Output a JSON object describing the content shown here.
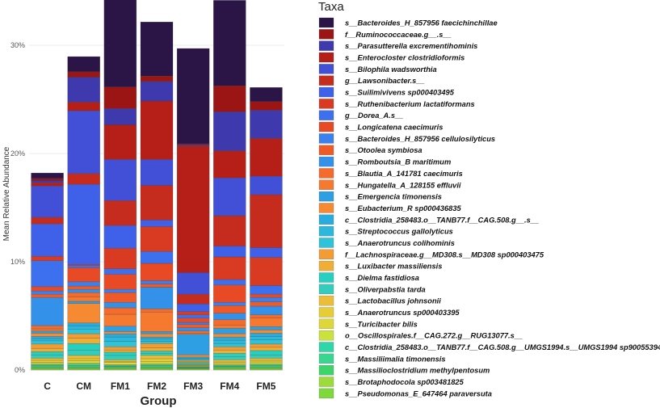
{
  "chart_data": {
    "type": "bar",
    "stacked": true,
    "xlabel": "Group",
    "ylabel": "Mean Relative Abundance",
    "y_tick_labels": [
      "0%",
      "10%",
      "20%",
      "30%"
    ],
    "ylim": [
      0,
      33
    ],
    "y_ticks": [
      0,
      10,
      20,
      30
    ],
    "grid": true,
    "legend_title": "Taxa",
    "legend_position": "right",
    "categories": [
      "C",
      "CM",
      "FM1",
      "FM2",
      "FM3",
      "FM4",
      "FM5"
    ],
    "series": [
      {
        "name": "s__Pseudomonas_E_647464 paraversuta",
        "color": "#7ed93a",
        "values": [
          0.1,
          0.1,
          0.1,
          0.1,
          0.1,
          0.1,
          0.1
        ]
      },
      {
        "name": "s__Brotaphodocola sp003481825",
        "color": "#9bdc3c",
        "values": [
          0.1,
          0.1,
          0.1,
          0.1,
          0.05,
          0.1,
          0.1
        ]
      },
      {
        "name": "s__Massilioclostridium methylpentosum",
        "color": "#3cd46b",
        "values": [
          0.1,
          0.1,
          0.1,
          0.1,
          0.05,
          0.1,
          0.1
        ]
      },
      {
        "name": "s__Massiliimalia timonensis",
        "color": "#3ad68f",
        "values": [
          0.1,
          0.1,
          0.05,
          0.1,
          0.05,
          0.05,
          0.1
        ]
      },
      {
        "name": "c__Clostridia_258483.o__TANB77.f__CAG.508.g__UMGS1994.s__UMGS1994 sp900553945",
        "color": "#2ed6a8",
        "values": [
          0.1,
          0.15,
          0.1,
          0.1,
          0.05,
          0.1,
          0.1
        ]
      },
      {
        "name": "o__Oscillospirales.f__CAG.272.g__RUG13077.s__",
        "color": "#c9e23c",
        "values": [
          0.1,
          0.1,
          0.05,
          0.1,
          0.05,
          0.05,
          0.1
        ]
      },
      {
        "name": "s__Turicibacter bilis",
        "color": "#ddd838",
        "values": [
          0.1,
          0.2,
          0.2,
          0.2,
          0.05,
          0.15,
          0.15
        ]
      },
      {
        "name": "s__Anaerotruncus sp000403395",
        "color": "#e6cd36",
        "values": [
          0.2,
          0.2,
          0.1,
          0.25,
          0.05,
          0.1,
          0.15
        ]
      },
      {
        "name": "s__Lactobacillus johnsonii",
        "color": "#ecbd38",
        "values": [
          0.2,
          0.3,
          0.15,
          0.3,
          0.05,
          0.2,
          0.2
        ]
      },
      {
        "name": "s__Oliverpabstia tarda",
        "color": "#34cdbb",
        "values": [
          0.3,
          0.5,
          0.4,
          0.2,
          0.1,
          0.3,
          0.3
        ]
      },
      {
        "name": "s__Dielma fastidiosa",
        "color": "#27cfc0",
        "values": [
          0.3,
          0.6,
          0.3,
          0.2,
          0.1,
          0.3,
          0.4
        ]
      },
      {
        "name": "s__Luxibacter massiliensis",
        "color": "#f0ae35",
        "values": [
          0.3,
          0.5,
          0.2,
          0.3,
          0.1,
          0.3,
          0.3
        ]
      },
      {
        "name": "f__Lachnospiraceae.g__MD308.s__MD308 sp000403475",
        "color": "#f39c33",
        "values": [
          0.4,
          0.4,
          0.3,
          0.4,
          0.1,
          0.3,
          0.3
        ]
      },
      {
        "name": "s__Anaerotruncus colihominis",
        "color": "#2ec3d8",
        "values": [
          0.3,
          0.4,
          0.5,
          0.2,
          0.1,
          0.3,
          0.4
        ]
      },
      {
        "name": "s__Streptococcus gallolyticus",
        "color": "#2bb8dc",
        "values": [
          0.2,
          0.3,
          0.4,
          0.2,
          0.1,
          0.3,
          0.3
        ]
      },
      {
        "name": "c__Clostridia_258483.o__TANB77.f__CAG.508.g__.s__",
        "color": "#2aabe0",
        "values": [
          0.2,
          0.3,
          0.3,
          0.2,
          0.1,
          0.3,
          0.3
        ]
      },
      {
        "name": "s__Eubacterium_R sp000436835",
        "color": "#f58a32",
        "values": [
          0.3,
          1.8,
          0.2,
          0.3,
          0.2,
          0.3,
          0.3
        ]
      },
      {
        "name": "s__Emergencia timonensis",
        "color": "#2e9fe3",
        "values": [
          0.2,
          0.2,
          0.5,
          0.2,
          1.9,
          0.5,
          0.3
        ]
      },
      {
        "name": "s__Hungatella_A_128155 effluvii",
        "color": "#f57a2f",
        "values": [
          0.2,
          0.4,
          1.1,
          1.8,
          0.1,
          0.3,
          0.8
        ]
      },
      {
        "name": "s__Blautia_A_141781 caecimuris",
        "color": "#f46b2b",
        "values": [
          0.3,
          0.4,
          0.6,
          0.3,
          0.2,
          0.5,
          0.3
        ]
      },
      {
        "name": "s__Romboutsia_B maritimum",
        "color": "#3391ea",
        "values": [
          2.6,
          0.3,
          0.5,
          2.0,
          0.3,
          0.6,
          0.8
        ]
      },
      {
        "name": "s__Otoolea symbiosa",
        "color": "#ef5a28",
        "values": [
          0.3,
          0.3,
          0.9,
          0.3,
          0.3,
          0.7,
          0.4
        ]
      },
      {
        "name": "s__Bacteroides_H_857956 cellulosilyticus",
        "color": "#3a80ee",
        "values": [
          0.3,
          0.4,
          0.3,
          0.3,
          0.2,
          0.3,
          0.4
        ]
      },
      {
        "name": "s__Longicatena caecimuris",
        "color": "#e74a25",
        "values": [
          0.4,
          1.3,
          1.4,
          1.6,
          0.4,
          1.6,
          0.3
        ]
      },
      {
        "name": "g__Dorea_A.s__",
        "color": "#3d70ef",
        "values": [
          2.4,
          0.2,
          0.5,
          1.1,
          0.3,
          0.5,
          0.8
        ]
      },
      {
        "name": "s__Ruthenibacterium lactatiformans",
        "color": "#d83b21",
        "values": [
          0.4,
          0.1,
          1.9,
          2.3,
          0.3,
          2.1,
          2.6
        ]
      },
      {
        "name": "s__Suilimivivens sp000403495",
        "color": "#3f60e8",
        "values": [
          3.0,
          7.4,
          2.1,
          0.6,
          0.7,
          1.0,
          0.9
        ]
      },
      {
        "name": "g__Lawsonibacter.s__",
        "color": "#c62c1d",
        "values": [
          0.6,
          1.0,
          2.3,
          3.2,
          0.9,
          2.8,
          4.9
        ]
      },
      {
        "name": "s__Bilophila wadsworthia",
        "color": "#4150d6",
        "values": [
          2.9,
          5.8,
          3.8,
          2.4,
          2.0,
          3.5,
          1.7
        ]
      },
      {
        "name": "s__Enterocloster clostridioformis",
        "color": "#b51f18",
        "values": [
          0.3,
          0.8,
          3.2,
          5.4,
          11.7,
          2.5,
          3.5
        ]
      },
      {
        "name": "s__Parasutterella excrementihominis",
        "color": "#3e3aae",
        "values": [
          0.2,
          2.3,
          1.5,
          1.8,
          0.1,
          3.6,
          2.6
        ]
      },
      {
        "name": "f__Ruminococcaceae.g__.s__",
        "color": "#9b1514",
        "values": [
          0.2,
          0.5,
          2.0,
          0.5,
          0.1,
          2.4,
          0.8
        ]
      },
      {
        "name": "s__Bacteroides_H_857956 faecichinchillae",
        "color": "#2b1446",
        "values": [
          0.5,
          1.4,
          11.1,
          5.0,
          8.8,
          7.9,
          1.3
        ]
      }
    ]
  }
}
